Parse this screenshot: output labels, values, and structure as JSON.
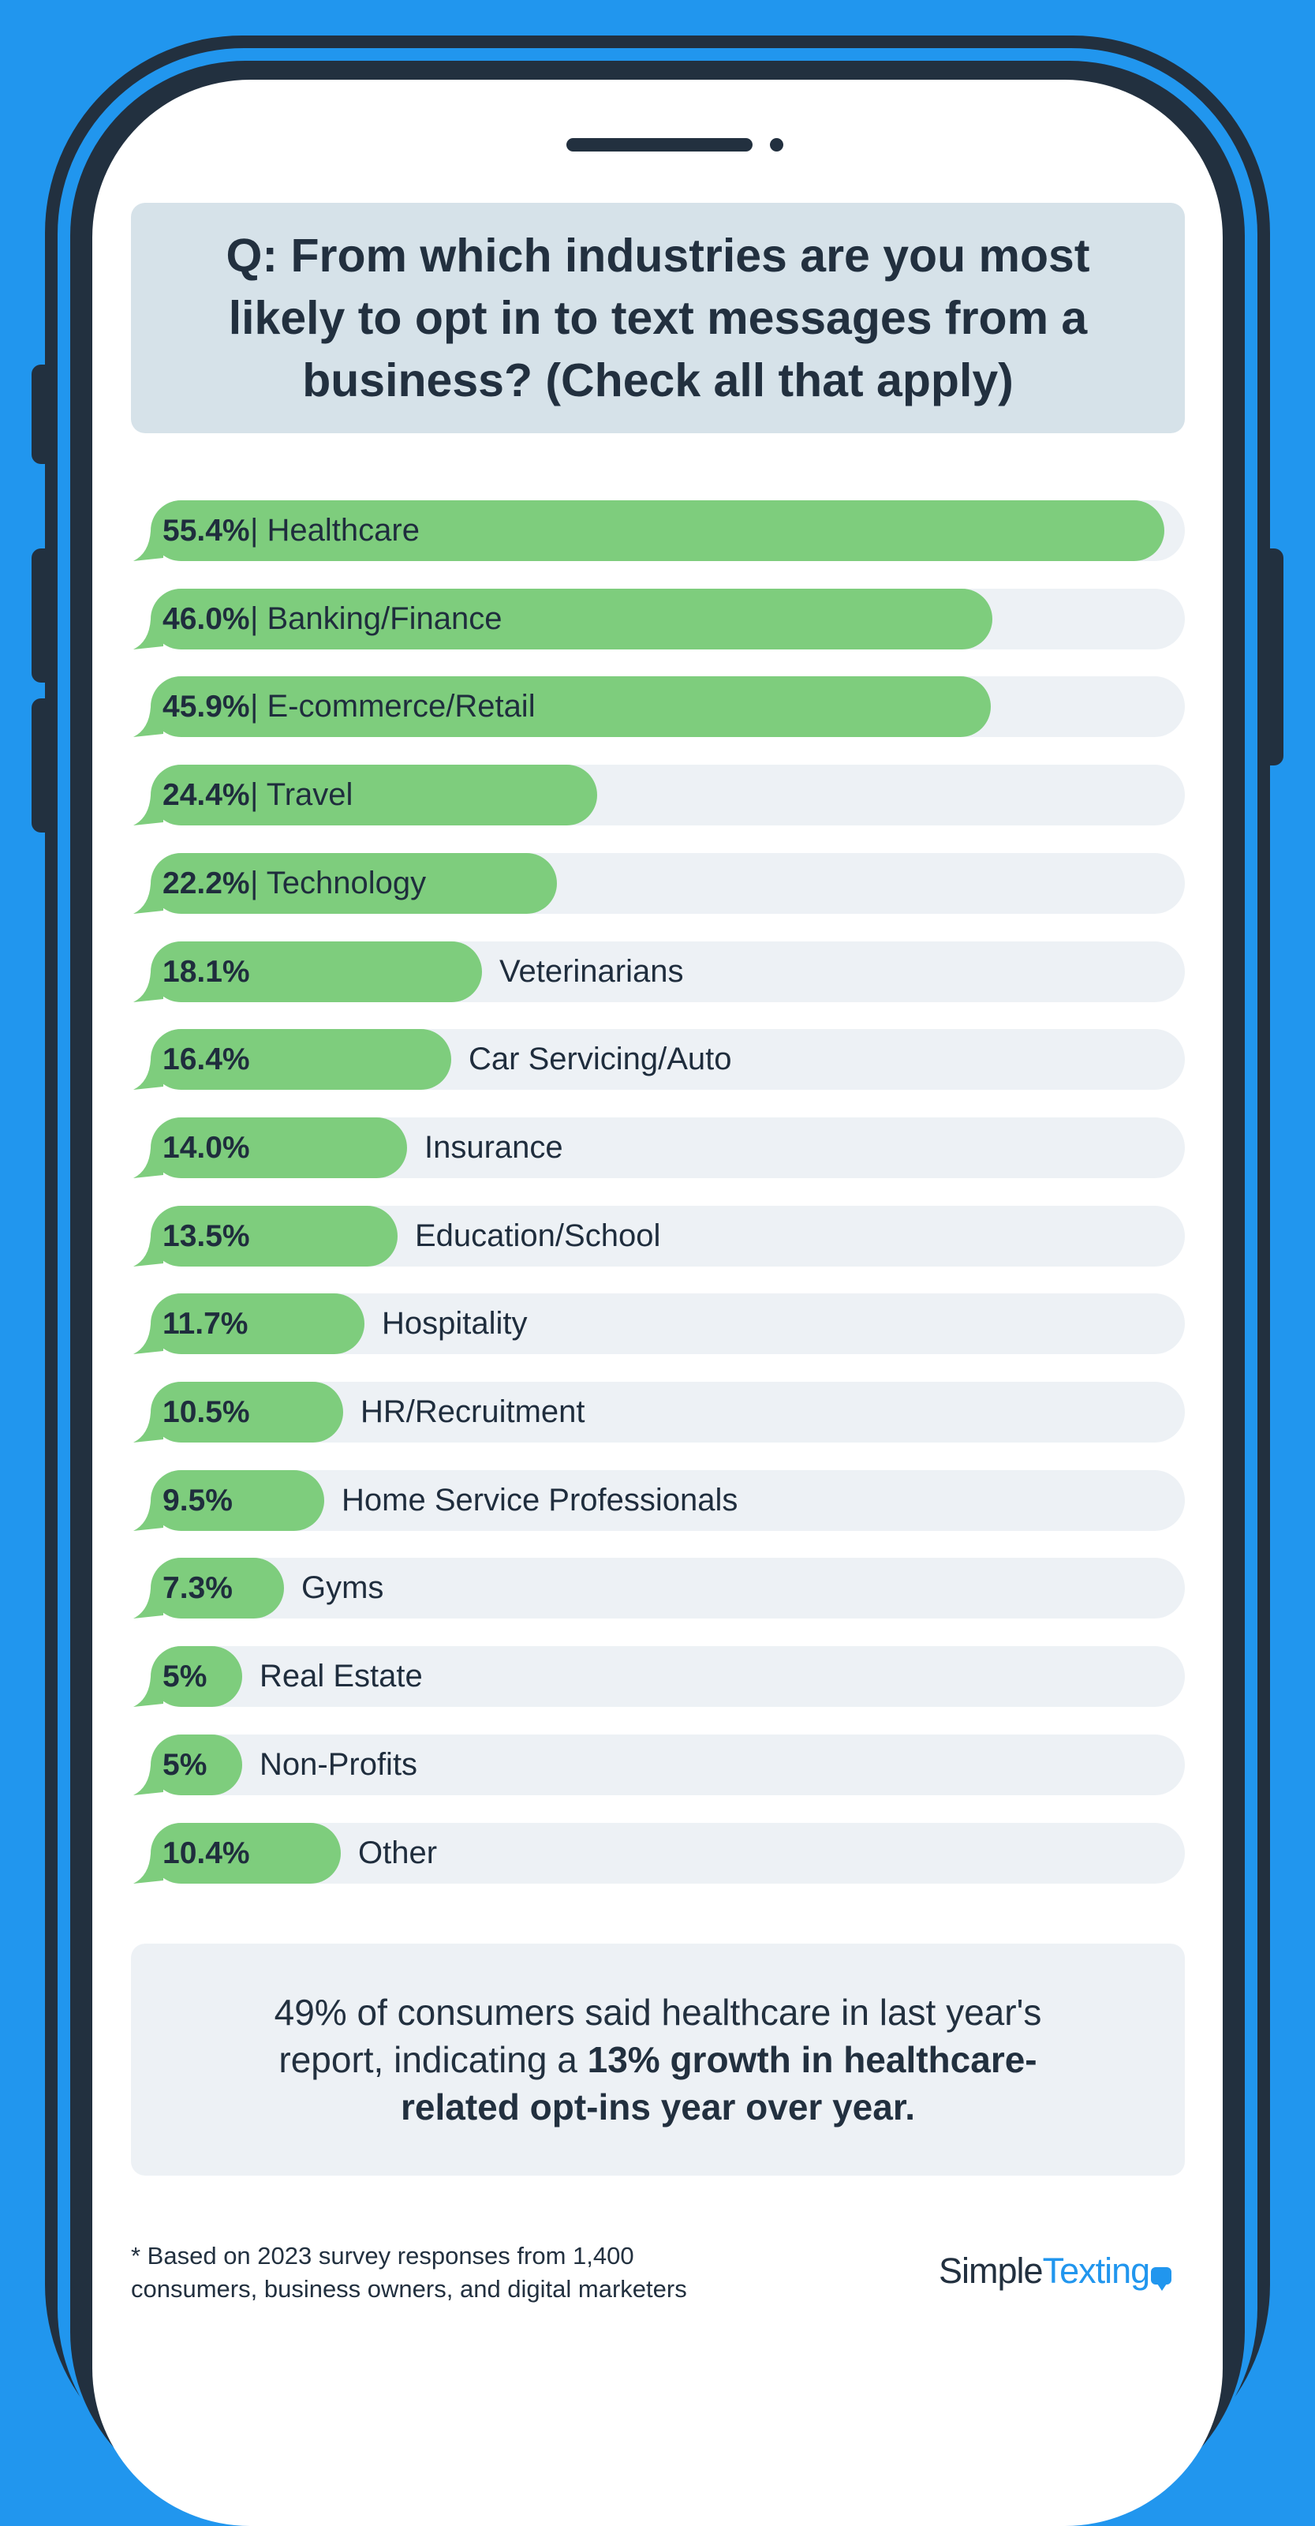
{
  "question": {
    "text": "Q: From which industries are you most likely to opt in to text messages from a business? (Check all that apply)"
  },
  "chart_data": {
    "type": "bar",
    "orientation": "horizontal",
    "title": "Q: From which industries are you most likely to opt in to text messages from a business? (Check all that apply)",
    "xlim": [
      0,
      56.5
    ],
    "bars": [
      {
        "pct": "55.4%",
        "sep": " | ",
        "category": "Healthcare",
        "value": 55.4,
        "inside": true
      },
      {
        "pct": "46.0%",
        "sep": " | ",
        "category": "Banking/Finance",
        "value": 46.0,
        "inside": true
      },
      {
        "pct": "45.9%",
        "sep": " | ",
        "category": "E-commerce/Retail",
        "value": 45.9,
        "inside": true
      },
      {
        "pct": "24.4%",
        "sep": " | ",
        "category": "Travel",
        "value": 24.4,
        "inside": true
      },
      {
        "pct": "22.2%",
        "sep": " | ",
        "category": "Technology",
        "value": 22.2,
        "inside": true
      },
      {
        "pct": "18.1%",
        "sep": "",
        "category": "Veterinarians",
        "value": 18.1,
        "inside": false
      },
      {
        "pct": "16.4%",
        "sep": "",
        "category": "Car Servicing/Auto",
        "value": 16.4,
        "inside": false
      },
      {
        "pct": "14.0%",
        "sep": "",
        "category": "Insurance",
        "value": 14.0,
        "inside": false
      },
      {
        "pct": "13.5%",
        "sep": "",
        "category": "Education/School",
        "value": 13.5,
        "inside": false
      },
      {
        "pct": "11.7%",
        "sep": "",
        "category": "Hospitality",
        "value": 11.7,
        "inside": false
      },
      {
        "pct": "10.5%",
        "sep": "",
        "category": "HR/Recruitment",
        "value": 10.5,
        "inside": false
      },
      {
        "pct": "9.5%",
        "sep": "",
        "category": "Home Service Professionals",
        "value": 9.5,
        "inside": false
      },
      {
        "pct": "7.3%",
        "sep": "",
        "category": "Gyms",
        "value": 7.3,
        "inside": false
      },
      {
        "pct": "5%",
        "sep": "",
        "category": "Real Estate",
        "value": 5,
        "inside": false
      },
      {
        "pct": "5%",
        "sep": "",
        "category": "Non-Profits",
        "value": 5,
        "inside": false
      },
      {
        "pct": "10.4%",
        "sep": "",
        "category": "Other",
        "value": 10.4,
        "inside": false
      }
    ]
  },
  "callout": {
    "plain": "49% of consumers said healthcare in last year's report, indicating a ",
    "bold": "13% growth in healthcare-related opt-ins year over year."
  },
  "footnote": {
    "line1": "* Based on 2023 survey responses from 1,400",
    "line2": "consumers, business owners, and digital marketers"
  },
  "logo": {
    "part1": "Simple",
    "part2": "Texting"
  },
  "colors": {
    "background": "#2196ee",
    "frame": "#22303f",
    "bar": "#7ecd7d",
    "track": "#edf1f5",
    "header_box": "#d6e2e9"
  }
}
